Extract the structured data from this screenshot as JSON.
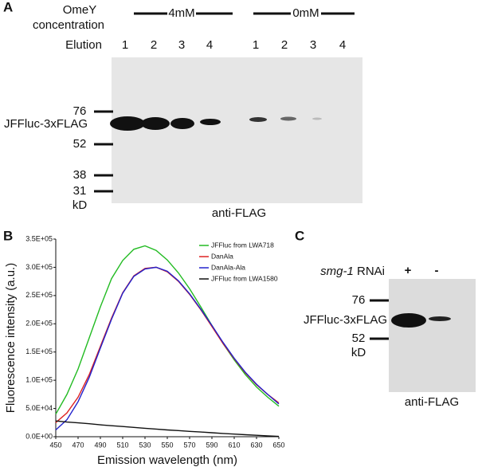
{
  "panel_a": {
    "label": "A",
    "treatment_label": [
      "OmeY",
      "concentration"
    ],
    "groups": [
      "4mM",
      "0mM"
    ],
    "elution_label": "Elution",
    "lanes": [
      "1",
      "2",
      "3",
      "4",
      "1",
      "2",
      "3",
      "4"
    ],
    "markers": [
      "76",
      "52",
      "38",
      "31",
      "kD"
    ],
    "band_label": "JFFluc-3xFLAG",
    "antibody": "anti-FLAG"
  },
  "chart_data": {
    "type": "line",
    "panel_label": "B",
    "x_label": "Emission wavelength (nm)",
    "y_label": "Fluorescence intensity (a.u.)",
    "x": [
      450,
      460,
      470,
      480,
      490,
      500,
      510,
      520,
      530,
      540,
      550,
      560,
      570,
      580,
      590,
      600,
      610,
      620,
      630,
      640,
      650
    ],
    "xlim": [
      450,
      650
    ],
    "xticks": [
      450,
      470,
      490,
      510,
      530,
      550,
      570,
      590,
      610,
      630,
      650
    ],
    "ylim": [
      0,
      350000
    ],
    "yticks": [
      {
        "value": 0,
        "label": "0.0E+00"
      },
      {
        "value": 50000,
        "label": "5.0E+04"
      },
      {
        "value": 100000,
        "label": "1.0E+05"
      },
      {
        "value": 150000,
        "label": "1.5E+05"
      },
      {
        "value": 200000,
        "label": "2.0E+05"
      },
      {
        "value": 250000,
        "label": "2.5E+05"
      },
      {
        "value": 300000,
        "label": "3.0E+05"
      },
      {
        "value": 350000,
        "label": "3.5E+05"
      }
    ],
    "legend": "upper right",
    "series": [
      {
        "name": "JFFluc from LWA718",
        "color": "#22bb22",
        "values": [
          40000,
          75000,
          120000,
          175000,
          230000,
          280000,
          312000,
          332000,
          338000,
          330000,
          313000,
          290000,
          262000,
          230000,
          197000,
          165000,
          136000,
          110000,
          88000,
          70000,
          54000
        ]
      },
      {
        "name": "DanAla",
        "color": "#dd2222",
        "values": [
          25000,
          42000,
          70000,
          110000,
          160000,
          210000,
          255000,
          285000,
          298000,
          300000,
          292000,
          275000,
          252000,
          225000,
          195000,
          165000,
          138000,
          113000,
          92000,
          75000,
          60000
        ]
      },
      {
        "name": "DanAla-Ala",
        "color": "#2222cc",
        "values": [
          12000,
          30000,
          62000,
          105000,
          157000,
          208000,
          254000,
          284000,
          297000,
          300000,
          293000,
          276000,
          253000,
          226000,
          197000,
          167000,
          139000,
          114000,
          93000,
          75000,
          58000
        ]
      },
      {
        "name": "JFFluc from LWA1580",
        "color": "#111111",
        "values": [
          28000,
          26000,
          24500,
          23000,
          21000,
          19500,
          18000,
          16500,
          15000,
          13500,
          12000,
          10800,
          9500,
          8300,
          7000,
          5800,
          4600,
          3500,
          2500,
          1500,
          500
        ]
      }
    ]
  },
  "panel_c": {
    "label": "C",
    "treatment_gene": "smg-1",
    "treatment_suffix": " RNAi",
    "lanes": [
      "+",
      "-"
    ],
    "markers": [
      "76",
      "52",
      "kD"
    ],
    "band_label": "JFFluc-3xFLAG",
    "antibody": "anti-FLAG"
  }
}
